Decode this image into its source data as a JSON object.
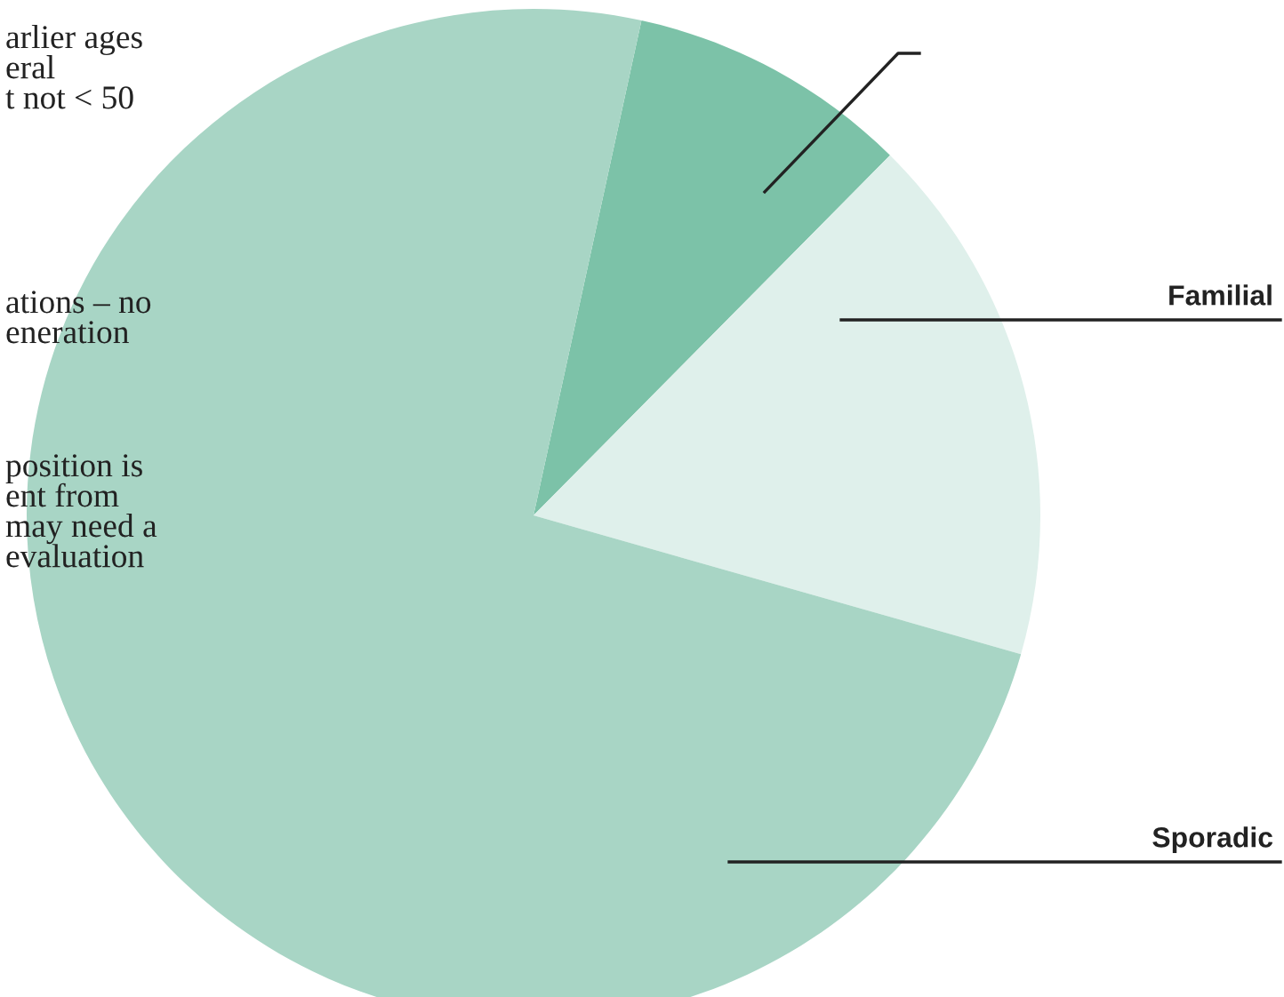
{
  "chart_data": {
    "type": "pie",
    "categories": [
      null,
      "Familial",
      "Sporadic"
    ],
    "values": [
      9,
      17,
      74
    ],
    "colors": [
      "#7cc2a8",
      "#dff0eb",
      "#a8d5c5"
    ],
    "annotations": [
      "arlier ages\neral\nt not < 50",
      "ations – no\neneration",
      "position is\nent from\nmay need a\nevaluation"
    ]
  }
}
